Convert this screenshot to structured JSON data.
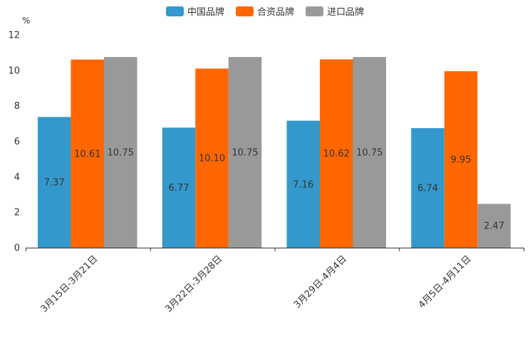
{
  "chart_data": {
    "type": "bar",
    "unit": "%",
    "categories": [
      "3月15日-3月21日",
      "3月22日-3月28日",
      "3月29日-4月4日",
      "4月5日-4月11日"
    ],
    "series": [
      {
        "name": "中国品牌",
        "color": "#3399cc",
        "values": [
          7.37,
          6.77,
          7.16,
          6.74
        ],
        "labels": [
          "7.37",
          "6.77",
          "7.16",
          "6.74"
        ]
      },
      {
        "name": "合资品牌",
        "color": "#ff6600",
        "values": [
          10.61,
          10.1,
          10.62,
          9.95
        ],
        "labels": [
          "10.61",
          "10.10",
          "10.62",
          "9.95"
        ]
      },
      {
        "name": "进口品牌",
        "color": "#999999",
        "values": [
          10.75,
          10.75,
          10.75,
          2.47
        ],
        "labels": [
          "10.75",
          "10.75",
          "10.75",
          "2.47"
        ]
      }
    ],
    "ylim": [
      0,
      12
    ],
    "yticks": [
      0,
      2,
      4,
      6,
      8,
      10,
      12
    ],
    "legend_position": "top-center"
  }
}
